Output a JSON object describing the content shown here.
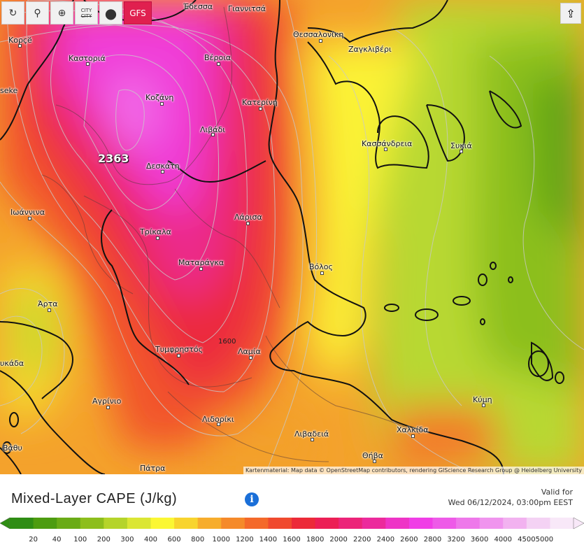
{
  "toolbar": {
    "refresh_icon": "↻",
    "pin_icon": "⚲",
    "zoom_icon": "⊕",
    "city_label_top": "CITY",
    "city_label_bottom": "CITY",
    "point_icon": "●",
    "model_label": "GFS"
  },
  "share_icon": "⇪",
  "map": {
    "max_value": "2363",
    "contour_label": "1600",
    "attribution": "Kartenmaterial: Map data © OpenStreetMap contributors, rendering GIScience Research Group @ Heidelberg University",
    "cities": [
      "Έδεσσα",
      "Γιαννιτσά",
      "Κορçë",
      "Καστοριά",
      "Βέροια",
      "Θεσσαλονίκη",
      "Ζαγκλιβέρι",
      "Κοζάνη",
      "Κατερίνη",
      "Λιβάδι",
      "Κασσάνδρεια",
      "Συκιά",
      "Δεσκάτη",
      "Ιωάννινα",
      "Λάρισα",
      "Τρίκαλα",
      "Ματαράγκα",
      "Βόλος",
      "Άρτα",
      "Τυμφρηστός",
      "Λαμία",
      "Αγρίνιο",
      "Κύμη",
      "Λιδορίκι",
      "Χαλκίδα",
      "Λιβαδειά",
      "Θήβα",
      "Πάτρα",
      "seke",
      "υκάδα",
      "Βάθυ"
    ]
  },
  "footer": {
    "title": "Mixed-Layer CAPE (J/kg)",
    "info_icon": "i",
    "valid_label": "Valid for",
    "valid_time": "Wed 06/12/2024, 03:00pm EEST"
  },
  "legend": {
    "ticks": [
      "20",
      "40",
      "100",
      "200",
      "300",
      "400",
      "600",
      "800",
      "1000",
      "1200",
      "1400",
      "1600",
      "1800",
      "2000",
      "2200",
      "2400",
      "2600",
      "2800",
      "3200",
      "3600",
      "4000",
      "4500",
      "5000"
    ],
    "colors": [
      "#2f8d14",
      "#4d9c10",
      "#6aab16",
      "#8dbe1c",
      "#b5d42a",
      "#dbe634",
      "#fbf734",
      "#f8d42e",
      "#f7ad2c",
      "#f58a2a",
      "#f4692a",
      "#f04a2e",
      "#ec2a38",
      "#ec1f55",
      "#ec2479",
      "#ec2a9c",
      "#ee34c6",
      "#f03ee6",
      "#ee5ae8",
      "#ee78ea",
      "#f094ee",
      "#f2b2f0",
      "#f4d2f4",
      "#f8e8f8"
    ]
  }
}
